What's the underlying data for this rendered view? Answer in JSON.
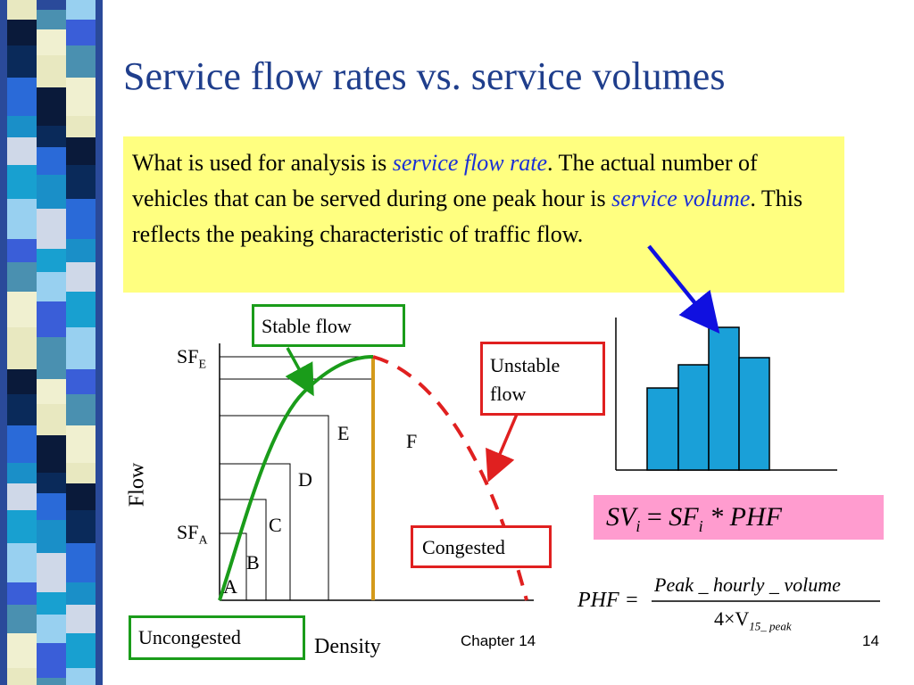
{
  "slide": {
    "title": "Service flow rates vs. service volumes",
    "callout": {
      "p1": "What is used for analysis is ",
      "term1": "service flow rate",
      "p2": ".  The actual number of vehicles that can be served during one peak hour is ",
      "term2": "service volume",
      "p3": ". This reflects the peaking characteristic of traffic flow."
    },
    "footer": {
      "chapter": "Chapter 14",
      "page": "14"
    }
  },
  "diagram": {
    "boxes": {
      "stable": "Stable flow",
      "unstable_1": "Unstable",
      "unstable_2": "flow",
      "congested": "Congested",
      "uncongested": "Uncongested"
    },
    "axis": {
      "y": "Flow",
      "x": "Density",
      "sfe_base": "SF",
      "sfe_sub": "E",
      "sfa_base": "SF",
      "sfa_sub": "A"
    },
    "los": [
      "A",
      "B",
      "C",
      "D",
      "E",
      "F"
    ],
    "formulas": {
      "sv": {
        "sv": "SV",
        "i1": "i",
        "eq": " = ",
        "sf": "SF",
        "i2": "i",
        "rest": " * PHF"
      },
      "phf": {
        "lhs": "PHF =",
        "num": "Peak _ hourly _ volume",
        "den_pre": "4×V",
        "den_sub": "15_ peak"
      }
    },
    "colors": {
      "stable_curve": "#1a9c1a",
      "unstable_curve": "#e02020",
      "capacity_line": "#d49a1a",
      "bars": "#1aa0d8",
      "arrow_blue": "#1010e0",
      "callout_bg": "#ffff80",
      "formula_bg": "#ff9ccf"
    }
  }
}
